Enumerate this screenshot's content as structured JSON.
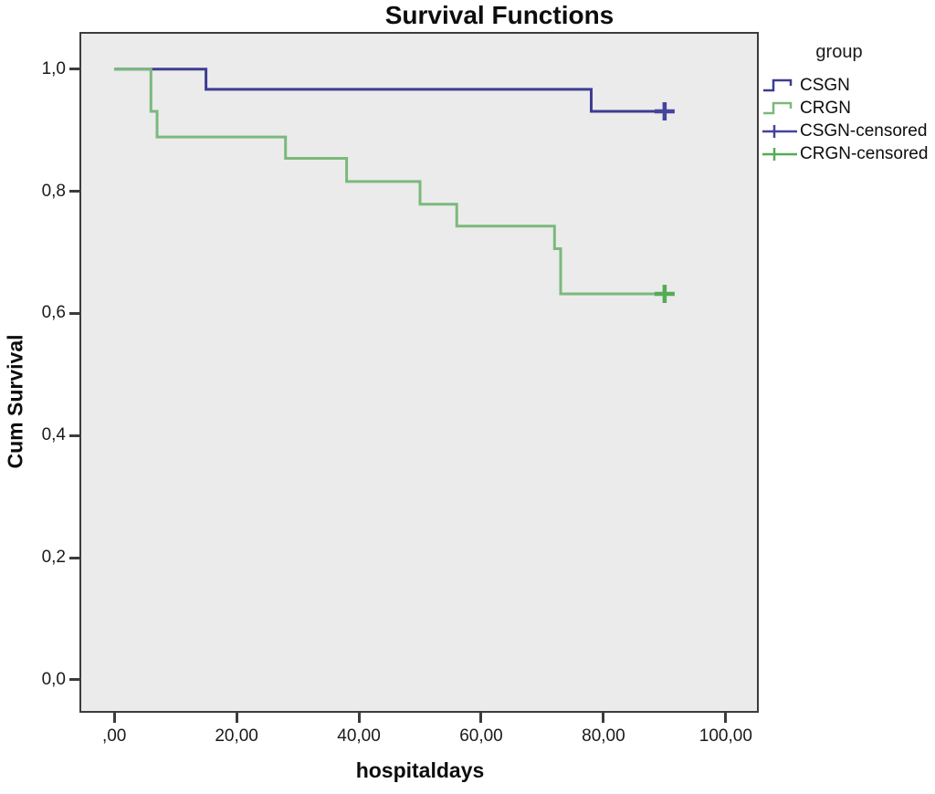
{
  "title": "Survival Functions",
  "x_axis": {
    "label": "hospitaldays",
    "ticks": [
      {
        "value": 0,
        "label": ",00"
      },
      {
        "value": 20,
        "label": "20,00"
      },
      {
        "value": 40,
        "label": "40,00"
      },
      {
        "value": 60,
        "label": "60,00"
      },
      {
        "value": 80,
        "label": "80,00"
      },
      {
        "value": 100,
        "label": "100,00"
      }
    ]
  },
  "y_axis": {
    "label": "Cum Survival",
    "ticks": [
      {
        "value": 0.0,
        "label": "0,0"
      },
      {
        "value": 0.2,
        "label": "0,2"
      },
      {
        "value": 0.4,
        "label": "0,4"
      },
      {
        "value": 0.6,
        "label": "0,6"
      },
      {
        "value": 0.8,
        "label": "0,8"
      },
      {
        "value": 1.0,
        "label": "1,0"
      }
    ]
  },
  "legend": {
    "title": "group",
    "items": [
      {
        "label": "CSGN",
        "marker": "step",
        "color": "#3d3d92"
      },
      {
        "label": "CRGN",
        "marker": "step",
        "color": "#7bb97b"
      },
      {
        "label": "CSGN-censored",
        "marker": "plus",
        "color": "#44449e"
      },
      {
        "label": "CRGN-censored",
        "marker": "plus",
        "color": "#55ab55"
      }
    ]
  },
  "chart_data": {
    "type": "line",
    "subtype": "kaplan-meier-survival-step",
    "title": "Survival Functions",
    "xlabel": "hospitaldays",
    "ylabel": "Cum Survival",
    "xlim": [
      -5.4,
      105.1
    ],
    "ylim": [
      -0.051,
      1.058
    ],
    "grid": false,
    "legend_position": "right",
    "plot_background": "#ebebeb",
    "series": [
      {
        "name": "CSGN",
        "color": "#3d3d92",
        "censor_color": "#44449e",
        "steps": [
          [
            0,
            1.0
          ],
          [
            15,
            1.0
          ],
          [
            15,
            0.967
          ],
          [
            78,
            0.967
          ],
          [
            78,
            0.931
          ],
          [
            90,
            0.931
          ]
        ],
        "censored": [
          [
            90,
            0.931
          ]
        ]
      },
      {
        "name": "CRGN",
        "color": "#7bb97b",
        "censor_color": "#55ab55",
        "steps": [
          [
            0,
            1.0
          ],
          [
            6,
            1.0
          ],
          [
            6,
            0.931
          ],
          [
            7,
            0.931
          ],
          [
            7,
            0.889
          ],
          [
            28,
            0.889
          ],
          [
            28,
            0.854
          ],
          [
            38,
            0.854
          ],
          [
            38,
            0.816
          ],
          [
            50,
            0.816
          ],
          [
            50,
            0.779
          ],
          [
            56,
            0.779
          ],
          [
            56,
            0.743
          ],
          [
            72,
            0.743
          ],
          [
            72,
            0.706
          ],
          [
            73,
            0.706
          ],
          [
            73,
            0.632
          ],
          [
            90,
            0.632
          ]
        ],
        "censored": [
          [
            90,
            0.632
          ]
        ]
      }
    ]
  }
}
